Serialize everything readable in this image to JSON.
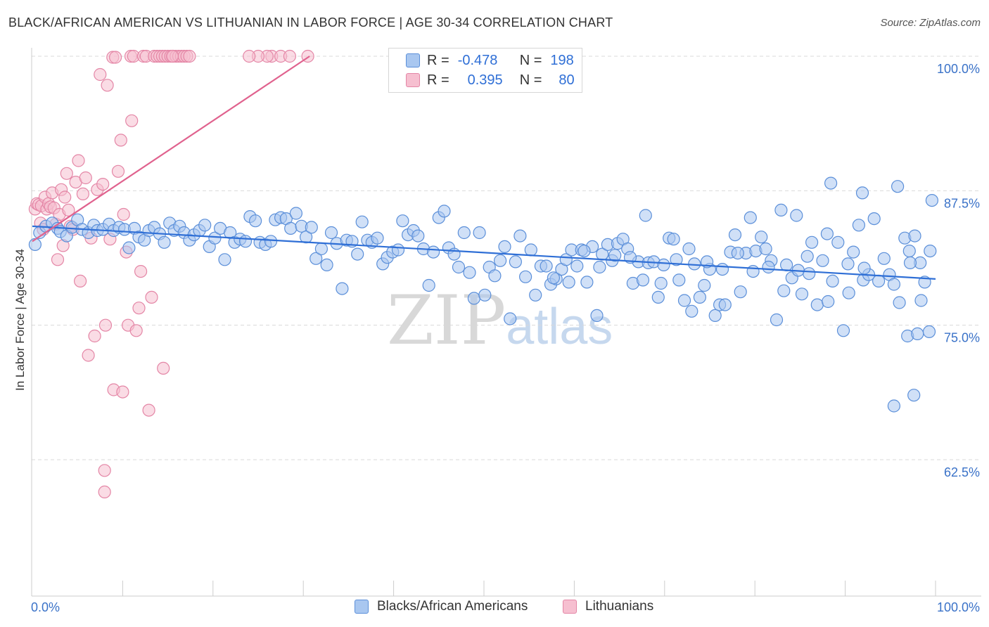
{
  "header": {
    "title": "BLACK/AFRICAN AMERICAN VS LITHUANIAN IN LABOR FORCE | AGE 30-34 CORRELATION CHART",
    "source": "Source: ZipAtlas.com"
  },
  "watermark": {
    "zip": "ZIP",
    "atlas": "atlas"
  },
  "legend": {
    "rows": [
      {
        "r_label": "R =",
        "r_value": "-0.478",
        "n_label": "N =",
        "n_value": "198"
      },
      {
        "r_label": "R =",
        "r_value": "0.395",
        "n_label": "N =",
        "n_value": "80"
      }
    ]
  },
  "bottom_legend": {
    "items": [
      {
        "label": "Blacks/African Americans"
      },
      {
        "label": "Lithuanians"
      }
    ]
  },
  "colors": {
    "blue_fill": "#a9c7f0",
    "blue_stroke": "#5b8fd9",
    "blue_line": "#2f6fd6",
    "pink_fill": "#f6bfd0",
    "pink_stroke": "#e486a6",
    "pink_line": "#e0628e",
    "grid": "#d9d9d9",
    "axis_text": "#3a72c8"
  },
  "chart_data": {
    "type": "scatter",
    "title": "BLACK/AFRICAN AMERICAN VS LITHUANIAN IN LABOR FORCE | AGE 30-34 CORRELATION CHART",
    "xlabel": "",
    "ylabel": "In Labor Force | Age 30-34",
    "xlim": [
      0,
      100
    ],
    "ylim": [
      50,
      102
    ],
    "x_tick_labels": [
      "0.0%",
      "100.0%"
    ],
    "y_ticks": [
      62.5,
      75.0,
      87.5,
      100.0
    ],
    "y_tick_labels": [
      "62.5%",
      "75.0%",
      "87.5%",
      "100.0%"
    ],
    "grid": true,
    "legend_position": "top-center",
    "series": [
      {
        "name": "Blacks/African Americans",
        "R": -0.478,
        "N": 198,
        "trend": {
          "x": [
            0,
            100
          ],
          "y": [
            84.2,
            79.3
          ]
        },
        "points": [
          [
            0.3,
            82.5
          ],
          [
            0.8,
            83.6
          ],
          [
            1.5,
            84.2
          ],
          [
            2.2,
            84.5
          ],
          [
            2.8,
            84.0
          ],
          [
            3.1,
            83.7
          ],
          [
            3.8,
            83.3
          ],
          [
            4.4,
            84.1
          ],
          [
            5.0,
            84.8
          ],
          [
            5.5,
            83.9
          ],
          [
            6.2,
            83.6
          ],
          [
            6.8,
            84.3
          ],
          [
            7.2,
            83.8
          ],
          [
            7.8,
            83.9
          ],
          [
            8.5,
            84.4
          ],
          [
            9.0,
            83.8
          ],
          [
            9.6,
            84.1
          ],
          [
            10.2,
            83.9
          ],
          [
            10.7,
            82.2
          ],
          [
            11.3,
            84.0
          ],
          [
            11.8,
            83.2
          ],
          [
            12.4,
            82.9
          ],
          [
            12.9,
            83.8
          ],
          [
            13.5,
            84.1
          ],
          [
            14.1,
            83.5
          ],
          [
            14.6,
            82.7
          ],
          [
            15.2,
            84.5
          ],
          [
            15.7,
            83.8
          ],
          [
            16.3,
            84.2
          ],
          [
            16.8,
            83.6
          ],
          [
            17.4,
            82.9
          ],
          [
            17.9,
            83.4
          ],
          [
            18.5,
            83.8
          ],
          [
            19.1,
            84.3
          ],
          [
            19.6,
            82.3
          ],
          [
            20.2,
            83.1
          ],
          [
            20.8,
            84.0
          ],
          [
            21.3,
            81.1
          ],
          [
            21.9,
            83.6
          ],
          [
            22.4,
            82.7
          ],
          [
            23.0,
            83.0
          ],
          [
            23.6,
            82.8
          ],
          [
            24.1,
            85.1
          ],
          [
            24.7,
            84.7
          ],
          [
            25.2,
            82.7
          ],
          [
            25.8,
            82.5
          ],
          [
            26.4,
            82.8
          ],
          [
            26.9,
            84.8
          ],
          [
            27.5,
            85.0
          ],
          [
            28.1,
            84.9
          ],
          [
            28.6,
            84.0
          ],
          [
            29.2,
            85.4
          ],
          [
            29.8,
            84.2
          ],
          [
            30.3,
            83.2
          ],
          [
            30.9,
            84.1
          ],
          [
            31.4,
            81.2
          ],
          [
            32.0,
            82.1
          ],
          [
            32.6,
            80.6
          ],
          [
            33.1,
            83.6
          ],
          [
            33.7,
            82.6
          ],
          [
            34.3,
            78.4
          ],
          [
            34.8,
            82.9
          ],
          [
            35.4,
            82.8
          ],
          [
            36.0,
            81.6
          ],
          [
            36.5,
            84.6
          ],
          [
            37.1,
            82.9
          ],
          [
            37.6,
            82.7
          ],
          [
            38.2,
            83.1
          ],
          [
            38.8,
            80.7
          ],
          [
            39.3,
            81.3
          ],
          [
            39.9,
            81.8
          ],
          [
            40.5,
            82.0
          ],
          [
            41.0,
            84.7
          ],
          [
            41.6,
            83.4
          ],
          [
            42.2,
            83.8
          ],
          [
            42.7,
            83.3
          ],
          [
            43.3,
            82.1
          ],
          [
            43.9,
            78.7
          ],
          [
            44.4,
            81.8
          ],
          [
            45.0,
            85.0
          ],
          [
            45.6,
            85.6
          ],
          [
            46.1,
            82.2
          ],
          [
            46.7,
            81.6
          ],
          [
            47.2,
            80.4
          ],
          [
            47.8,
            83.6
          ],
          [
            48.4,
            79.9
          ],
          [
            48.9,
            77.5
          ],
          [
            49.5,
            83.6
          ],
          [
            50.1,
            77.8
          ],
          [
            50.6,
            80.4
          ],
          [
            51.2,
            79.6
          ],
          [
            51.8,
            81.0
          ],
          [
            52.3,
            82.3
          ],
          [
            52.9,
            75.6
          ],
          [
            53.5,
            80.9
          ],
          [
            54.0,
            83.3
          ],
          [
            54.6,
            79.5
          ],
          [
            55.2,
            82.0
          ],
          [
            55.7,
            77.8
          ],
          [
            56.3,
            80.5
          ],
          [
            56.9,
            80.5
          ],
          [
            57.4,
            78.8
          ],
          [
            58.0,
            79.3
          ],
          [
            58.6,
            80.2
          ],
          [
            59.1,
            81.1
          ],
          [
            59.7,
            82.0
          ],
          [
            60.3,
            80.5
          ],
          [
            60.8,
            82.0
          ],
          [
            61.4,
            79.0
          ],
          [
            62.0,
            82.3
          ],
          [
            62.5,
            75.9
          ],
          [
            63.1,
            81.6
          ],
          [
            63.7,
            82.5
          ],
          [
            64.2,
            81.0
          ],
          [
            64.8,
            82.6
          ],
          [
            65.4,
            83.0
          ],
          [
            65.9,
            82.1
          ],
          [
            66.5,
            78.9
          ],
          [
            67.1,
            80.9
          ],
          [
            67.6,
            79.2
          ],
          [
            68.2,
            80.8
          ],
          [
            68.8,
            80.9
          ],
          [
            69.3,
            77.6
          ],
          [
            69.9,
            80.6
          ],
          [
            70.5,
            83.1
          ],
          [
            71.0,
            83.0
          ],
          [
            71.6,
            79.2
          ],
          [
            72.2,
            77.3
          ],
          [
            72.7,
            82.1
          ],
          [
            73.3,
            80.7
          ],
          [
            73.9,
            77.6
          ],
          [
            74.4,
            78.7
          ],
          [
            75.0,
            80.2
          ],
          [
            75.6,
            75.9
          ],
          [
            76.1,
            76.9
          ],
          [
            76.7,
            76.9
          ],
          [
            77.3,
            81.8
          ],
          [
            77.8,
            83.4
          ],
          [
            78.4,
            78.1
          ],
          [
            79.0,
            81.7
          ],
          [
            79.5,
            85.0
          ],
          [
            80.1,
            81.9
          ],
          [
            80.7,
            83.2
          ],
          [
            81.2,
            82.1
          ],
          [
            81.8,
            81.0
          ],
          [
            82.4,
            75.5
          ],
          [
            82.9,
            85.7
          ],
          [
            83.5,
            80.6
          ],
          [
            84.1,
            79.4
          ],
          [
            84.6,
            85.2
          ],
          [
            85.2,
            77.9
          ],
          [
            85.8,
            81.4
          ],
          [
            86.3,
            82.7
          ],
          [
            86.9,
            76.9
          ],
          [
            87.5,
            81.0
          ],
          [
            88.0,
            83.5
          ],
          [
            88.6,
            79.1
          ],
          [
            89.2,
            82.7
          ],
          [
            89.8,
            74.5
          ],
          [
            90.3,
            80.7
          ],
          [
            90.9,
            81.8
          ],
          [
            91.5,
            84.3
          ],
          [
            92.0,
            79.2
          ],
          [
            92.6,
            79.7
          ],
          [
            93.2,
            84.9
          ],
          [
            93.7,
            79.1
          ],
          [
            94.3,
            81.2
          ],
          [
            94.9,
            79.7
          ],
          [
            95.4,
            78.8
          ],
          [
            96.0,
            77.1
          ],
          [
            96.6,
            83.1
          ],
          [
            97.1,
            81.9
          ],
          [
            97.7,
            83.3
          ],
          [
            98.3,
            80.8
          ],
          [
            98.8,
            79.0
          ],
          [
            99.4,
            81.9
          ],
          [
            88.4,
            88.2
          ],
          [
            91.9,
            87.3
          ],
          [
            95.8,
            87.9
          ],
          [
            99.6,
            86.6
          ],
          [
            96.9,
            74.0
          ],
          [
            98.0,
            74.2
          ],
          [
            99.3,
            74.4
          ],
          [
            95.4,
            67.5
          ],
          [
            97.6,
            68.5
          ],
          [
            98.4,
            77.3
          ],
          [
            97.2,
            80.8
          ],
          [
            92.1,
            80.3
          ],
          [
            90.4,
            78.0
          ],
          [
            88.1,
            77.2
          ],
          [
            86.0,
            79.8
          ],
          [
            84.8,
            80.1
          ],
          [
            83.2,
            78.2
          ],
          [
            81.5,
            80.4
          ],
          [
            79.8,
            80.0
          ],
          [
            78.1,
            81.7
          ],
          [
            76.4,
            80.2
          ],
          [
            74.7,
            80.9
          ],
          [
            73.0,
            76.3
          ],
          [
            71.3,
            81.1
          ],
          [
            69.6,
            78.9
          ],
          [
            67.9,
            85.2
          ],
          [
            66.2,
            81.3
          ],
          [
            64.5,
            81.5
          ],
          [
            62.8,
            80.4
          ],
          [
            61.1,
            81.9
          ],
          [
            59.4,
            79.0
          ],
          [
            57.7,
            79.4
          ]
        ]
      },
      {
        "name": "Lithuanians",
        "R": 0.395,
        "N": 80,
        "trend": {
          "x": [
            0,
            30.7
          ],
          "y": [
            82.8,
            100.0
          ]
        },
        "points": [
          [
            0.3,
            85.8
          ],
          [
            0.5,
            86.3
          ],
          [
            0.7,
            86.2
          ],
          [
            0.9,
            84.5
          ],
          [
            1.0,
            86.1
          ],
          [
            1.2,
            83.9
          ],
          [
            1.4,
            86.9
          ],
          [
            1.6,
            85.8
          ],
          [
            1.8,
            86.3
          ],
          [
            2.0,
            86.0
          ],
          [
            2.2,
            87.3
          ],
          [
            2.4,
            85.9
          ],
          [
            2.6,
            84.4
          ],
          [
            2.8,
            81.1
          ],
          [
            3.0,
            85.3
          ],
          [
            3.2,
            87.6
          ],
          [
            3.4,
            82.4
          ],
          [
            3.6,
            86.9
          ],
          [
            3.8,
            89.1
          ],
          [
            4.0,
            85.7
          ],
          [
            4.2,
            84.2
          ],
          [
            4.5,
            83.9
          ],
          [
            4.8,
            88.3
          ],
          [
            5.1,
            90.3
          ],
          [
            5.3,
            79.1
          ],
          [
            5.6,
            87.2
          ],
          [
            5.9,
            88.7
          ],
          [
            6.2,
            72.2
          ],
          [
            6.5,
            83.1
          ],
          [
            6.9,
            74.0
          ],
          [
            7.2,
            87.6
          ],
          [
            7.5,
            98.3
          ],
          [
            7.8,
            88.1
          ],
          [
            8.1,
            75.0
          ],
          [
            8.3,
            97.3
          ],
          [
            8.6,
            83.0
          ],
          [
            8.9,
            99.9
          ],
          [
            9.2,
            99.9
          ],
          [
            9.5,
            89.3
          ],
          [
            9.8,
            92.2
          ],
          [
            10.1,
            85.3
          ],
          [
            10.4,
            81.8
          ],
          [
            10.6,
            75.0
          ],
          [
            10.9,
            100.0
          ],
          [
            11.2,
            100.0
          ],
          [
            11.5,
            74.5
          ],
          [
            11.8,
            76.6
          ],
          [
            12.0,
            80.0
          ],
          [
            12.3,
            100.0
          ],
          [
            12.6,
            100.0
          ],
          [
            12.9,
            67.1
          ],
          [
            13.2,
            77.6
          ],
          [
            13.5,
            100.0
          ],
          [
            13.8,
            100.0
          ],
          [
            14.1,
            100.0
          ],
          [
            14.4,
            100.0
          ],
          [
            14.7,
            100.0
          ],
          [
            15.0,
            100.0
          ],
          [
            15.3,
            100.0
          ],
          [
            15.6,
            100.0
          ],
          [
            15.9,
            100.0
          ],
          [
            16.2,
            100.0
          ],
          [
            16.5,
            100.0
          ],
          [
            16.8,
            100.0
          ],
          [
            17.1,
            100.0
          ],
          [
            17.4,
            100.0
          ],
          [
            14.5,
            71.0
          ],
          [
            15.5,
            100.0
          ],
          [
            26.5,
            100.0
          ],
          [
            27.5,
            100.0
          ],
          [
            28.5,
            100.0
          ],
          [
            30.5,
            100.0
          ],
          [
            26.0,
            100.0
          ],
          [
            25.0,
            100.0
          ],
          [
            24.0,
            100.0
          ],
          [
            11.0,
            94.0
          ],
          [
            8.0,
            61.5
          ],
          [
            8.0,
            59.5
          ],
          [
            9.0,
            69.0
          ],
          [
            10.0,
            68.8
          ]
        ]
      }
    ]
  }
}
